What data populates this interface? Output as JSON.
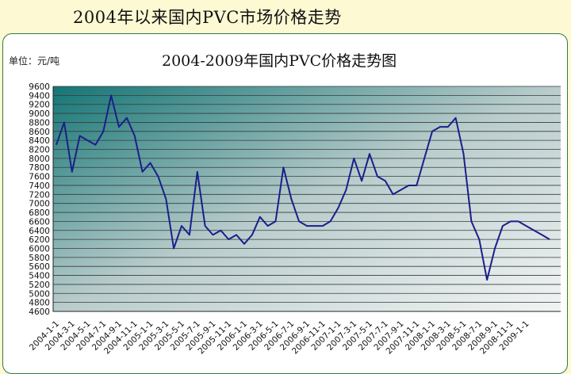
{
  "slide": {
    "title": "2004年以来国内PVC市场价格走势"
  },
  "chart_data": {
    "type": "line",
    "title": "2004-2009年国内PVC价格走势图",
    "unit": "单位：元/吨",
    "ylim": [
      4600,
      9600
    ],
    "grid": true,
    "yticks": [
      9600,
      9400,
      9200,
      9000,
      8800,
      8600,
      8400,
      8200,
      8000,
      7800,
      7600,
      7400,
      7200,
      7000,
      6800,
      6600,
      6400,
      6200,
      6000,
      5800,
      5600,
      5400,
      5200,
      5000,
      4800,
      4600
    ],
    "ytick_labels": [
      "9600",
      "9400",
      "9200",
      "9000",
      "8800",
      "8600",
      "8400",
      "8200",
      "8000",
      "7800",
      "7600",
      "7400",
      "7200",
      "7000",
      "6800",
      "6600",
      "6400",
      "6200",
      "6000",
      "5800",
      "5600",
      "5400",
      "5200",
      "5000",
      "4800",
      "4600"
    ],
    "xtick_labels": [
      "2004-1-1",
      "2004-3-1",
      "2004-5-1",
      "2004-7-1",
      "2004-9-1",
      "2004-11-1",
      "2005-1-1",
      "2005-3-1",
      "2005-5-1",
      "2005-7-1",
      "2005-9-1",
      "2005-11-1",
      "2006-1-1",
      "2006-3-1",
      "2006-5-1",
      "2006-7-1",
      "2006-9-1",
      "2006-11-1",
      "2007-1-1",
      "2007-3-1",
      "2007-5-1",
      "2007-7-1",
      "2007-9-1",
      "2007-11-1",
      "2008-1-1",
      "2008-3-1",
      "2008-5-1",
      "2008-7-1",
      "2008-9-1",
      "2008-11-1",
      "2009-1-1"
    ],
    "series": [
      {
        "color": "#1a1f8a",
        "x": [
          "2004-01",
          "2004-02",
          "2004-03",
          "2004-04",
          "2004-05",
          "2004-06",
          "2004-07",
          "2004-08",
          "2004-09",
          "2004-10",
          "2004-11",
          "2004-12",
          "2005-01",
          "2005-02",
          "2005-03",
          "2005-04",
          "2005-05",
          "2005-06",
          "2005-07",
          "2005-08",
          "2005-09",
          "2005-10",
          "2005-11",
          "2005-12",
          "2006-01",
          "2006-02",
          "2006-03",
          "2006-04",
          "2006-05",
          "2006-06",
          "2006-07",
          "2006-08",
          "2006-09",
          "2006-10",
          "2006-11",
          "2006-12",
          "2007-01",
          "2007-02",
          "2007-03",
          "2007-04",
          "2007-05",
          "2007-06",
          "2007-07",
          "2007-08",
          "2007-09",
          "2007-10",
          "2007-11",
          "2007-12",
          "2008-01",
          "2008-02",
          "2008-03",
          "2008-04",
          "2008-05",
          "2008-06",
          "2008-07",
          "2008-08",
          "2008-09",
          "2008-10",
          "2008-11",
          "2008-12",
          "2009-01",
          "2009-02",
          "2009-03",
          "2009-04"
        ],
        "values": [
          8300,
          8800,
          7700,
          8500,
          8400,
          8300,
          8600,
          9400,
          8700,
          8900,
          8500,
          7700,
          7900,
          7600,
          7100,
          6000,
          6500,
          6300,
          7700,
          6500,
          6300,
          6400,
          6200,
          6300,
          6100,
          6300,
          6700,
          6500,
          6600,
          7800,
          7100,
          6600,
          6500,
          6500,
          6500,
          6600,
          6900,
          7300,
          8000,
          7500,
          8100,
          7600,
          7500,
          7200,
          7300,
          7400,
          7400,
          8000,
          8600,
          8700,
          8700,
          8900,
          8100,
          6600,
          6200,
          5300,
          6000,
          6500,
          6600,
          6600,
          6500,
          6400,
          6300,
          6200
        ]
      }
    ]
  }
}
